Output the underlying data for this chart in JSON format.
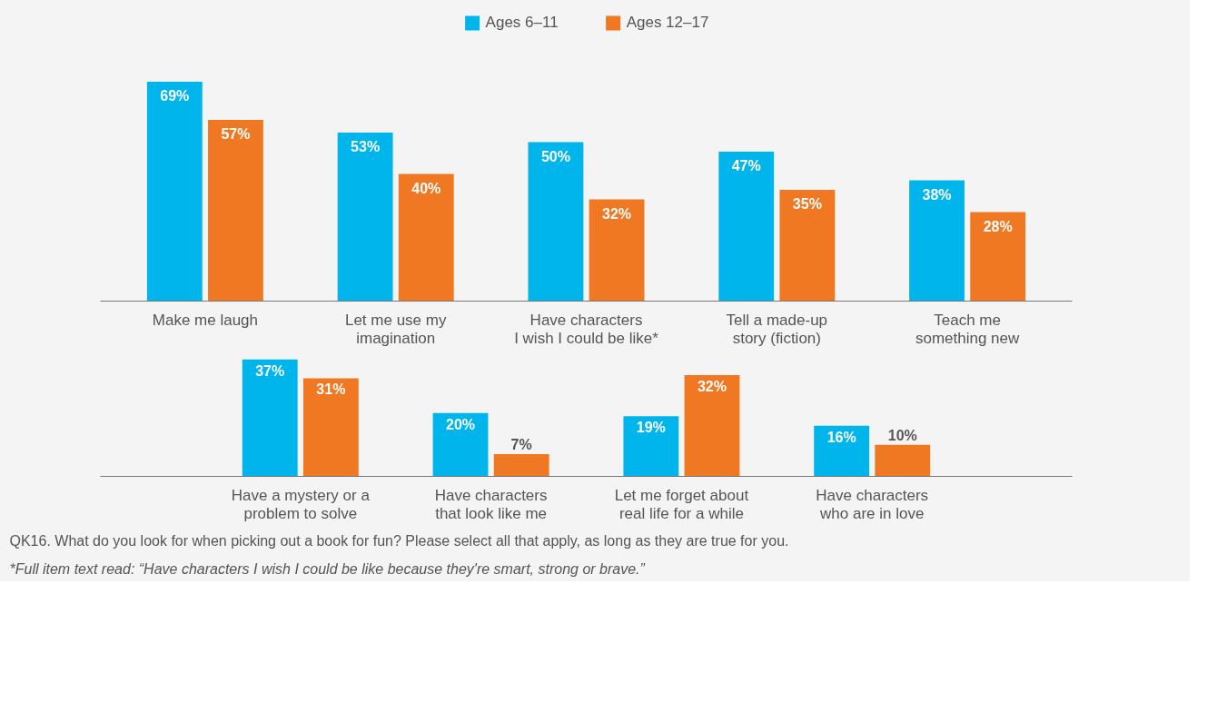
{
  "chart_data": [
    {
      "type": "bar",
      "categories": [
        "Make me laugh",
        "Let me use my\nimagination",
        "Have characters\nI wish I could be like*",
        "Tell a made-up\nstory (fiction)",
        "Teach me\nsomething new"
      ],
      "series": [
        {
          "name": "Ages 6–11",
          "color": "#00b5ec",
          "values": [
            69,
            53,
            50,
            47,
            38
          ],
          "value_labels": [
            "69%",
            "53%",
            "50%",
            "47%",
            "38%"
          ]
        },
        {
          "name": "Ages 12–17",
          "color": "#f07822",
          "values": [
            57,
            40,
            32,
            35,
            28
          ],
          "value_labels": [
            "57%",
            "40%",
            "32%",
            "35%",
            "28%"
          ]
        }
      ],
      "legend": "top",
      "grid": false
    },
    {
      "type": "bar",
      "categories": [
        "Have a mystery or a\nproblem to solve",
        "Have characters\nthat look like me",
        "Let me forget about\nreal life for a while",
        "Have characters\nwho are in love"
      ],
      "series": [
        {
          "color": "#00b5ec",
          "values": [
            37,
            20,
            19,
            16
          ],
          "value_labels": [
            "37%",
            "20%",
            "19%",
            "16%"
          ]
        },
        {
          "color": "#f07822",
          "values": [
            31,
            7,
            32,
            10
          ],
          "value_labels": [
            "31%",
            "7%",
            "32%",
            "10%"
          ]
        }
      ],
      "grid": false,
      "annotations": [
        "QK16. What do you look for when picking out a book for fun? Please select all that apply, as long as they are true for you.",
        "*Full item text read: “Have characters I wish I could be like because they're smart, strong or brave.”"
      ]
    }
  ]
}
